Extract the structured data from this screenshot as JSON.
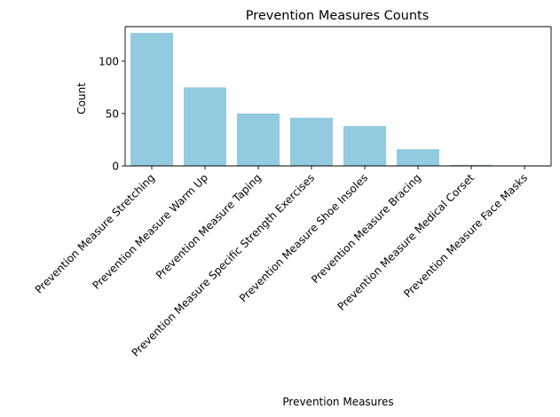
{
  "chart_data": {
    "type": "bar",
    "title": "Prevention Measures Counts",
    "xlabel": "Prevention Measures",
    "ylabel": "Count",
    "categories": [
      "Prevention Measure Stretching",
      "Prevention Measure Warm Up",
      "Prevention Measure Taping",
      "Prevention Measure Specific Strength Exercises",
      "Prevention Measure Shoe Insoles",
      "Prevention Measure Bracing",
      "Prevention Measure Medical Corset",
      "Prevention Measure Face Masks"
    ],
    "values": [
      127,
      75,
      50,
      46,
      38,
      16,
      1,
      0
    ],
    "ylim": [
      0,
      133
    ],
    "yticks": [
      0,
      50,
      100
    ],
    "grid": false,
    "bar_color": "#92cae0"
  }
}
